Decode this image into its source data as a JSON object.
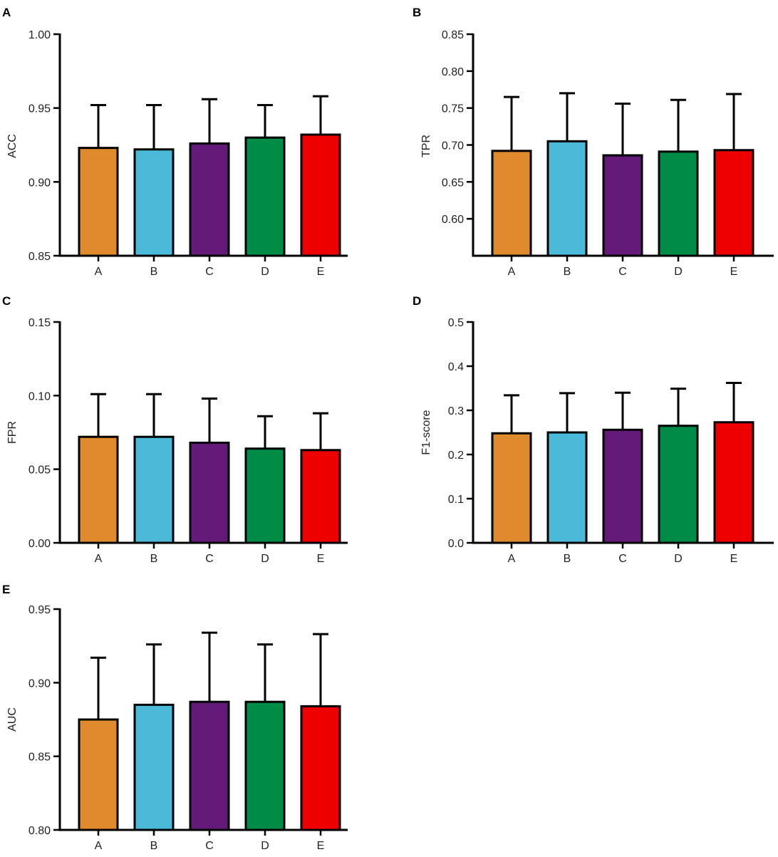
{
  "chart_data": [
    {
      "panel": "A",
      "type": "bar",
      "ylabel": "ACC",
      "categories": [
        "A",
        "B",
        "C",
        "D",
        "E"
      ],
      "values": [
        0.923,
        0.922,
        0.926,
        0.93,
        0.932
      ],
      "errors": [
        0.029,
        0.03,
        0.03,
        0.022,
        0.026
      ],
      "ylim": [
        0.85,
        1.0
      ],
      "yticks": [
        0.85,
        0.9,
        0.95,
        1.0
      ],
      "ytick_labels": [
        "0.85",
        "0.90",
        "0.95",
        "1.00"
      ]
    },
    {
      "panel": "B",
      "type": "bar",
      "ylabel": "TPR",
      "categories": [
        "A",
        "B",
        "C",
        "D",
        "E"
      ],
      "values": [
        0.692,
        0.705,
        0.686,
        0.691,
        0.693
      ],
      "errors": [
        0.073,
        0.065,
        0.07,
        0.07,
        0.076
      ],
      "ylim": [
        0.55,
        0.85
      ],
      "yticks": [
        0.6,
        0.65,
        0.7,
        0.75,
        0.8,
        0.85
      ],
      "ytick_labels": [
        "0.60",
        "0.65",
        "0.70",
        "0.75",
        "0.80",
        "0.85"
      ]
    },
    {
      "panel": "C",
      "type": "bar",
      "ylabel": "FPR",
      "categories": [
        "A",
        "B",
        "C",
        "D",
        "E"
      ],
      "values": [
        0.072,
        0.072,
        0.068,
        0.064,
        0.063
      ],
      "errors": [
        0.029,
        0.029,
        0.03,
        0.022,
        0.025
      ],
      "ylim": [
        0.0,
        0.15
      ],
      "yticks": [
        0.0,
        0.05,
        0.1,
        0.15
      ],
      "ytick_labels": [
        "0.00",
        "0.05",
        "0.10",
        "0.15"
      ]
    },
    {
      "panel": "D",
      "type": "bar",
      "ylabel": "F1-score",
      "categories": [
        "A",
        "B",
        "C",
        "D",
        "E"
      ],
      "values": [
        0.248,
        0.25,
        0.256,
        0.265,
        0.273
      ],
      "errors": [
        0.086,
        0.089,
        0.084,
        0.084,
        0.089
      ],
      "ylim": [
        0.0,
        0.5
      ],
      "yticks": [
        0.0,
        0.1,
        0.2,
        0.3,
        0.4,
        0.5
      ],
      "ytick_labels": [
        "0.0",
        "0.1",
        "0.2",
        "0.3",
        "0.4",
        "0.5"
      ]
    },
    {
      "panel": "E",
      "type": "bar",
      "ylabel": "AUC",
      "categories": [
        "A",
        "B",
        "C",
        "D",
        "E"
      ],
      "values": [
        0.875,
        0.885,
        0.887,
        0.887,
        0.884
      ],
      "errors": [
        0.042,
        0.041,
        0.047,
        0.039,
        0.049
      ],
      "ylim": [
        0.8,
        0.95
      ],
      "yticks": [
        0.8,
        0.85,
        0.9,
        0.95
      ],
      "ytick_labels": [
        "0.80",
        "0.85",
        "0.90",
        "0.95"
      ]
    }
  ],
  "colors": {
    "A": "#e08a2e",
    "B": "#4bbad8",
    "C": "#631a78",
    "D": "#008c46",
    "E": "#ee0000",
    "axis": "#000000"
  }
}
